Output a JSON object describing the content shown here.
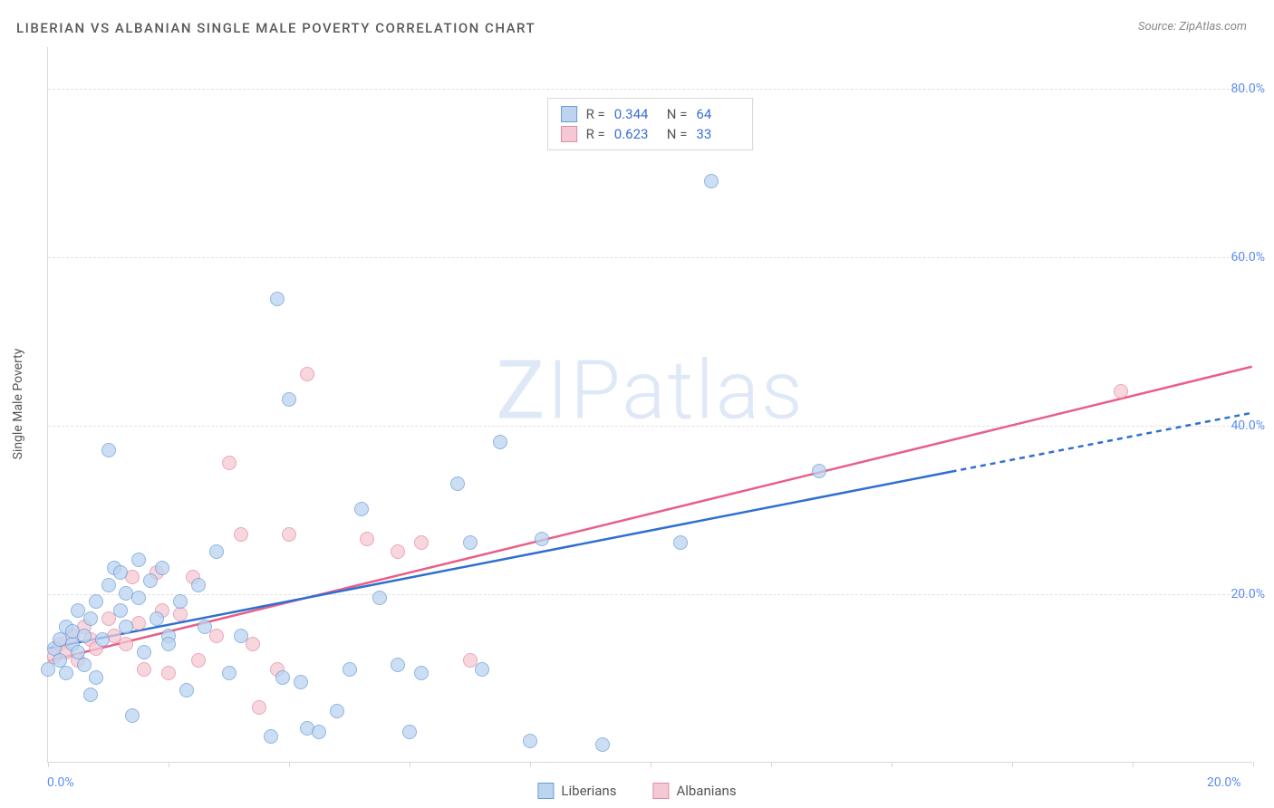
{
  "title": "LIBERIAN VS ALBANIAN SINGLE MALE POVERTY CORRELATION CHART",
  "source": "Source: ZipAtlas.com",
  "watermark": {
    "z": "Z",
    "ip": "IP",
    "atlas": "atlas"
  },
  "yaxis_label": "Single Male Poverty",
  "chart": {
    "type": "scatter",
    "background_color": "#ffffff",
    "grid_color": "#e0e0e0",
    "axis_color": "#d8d8d8",
    "tick_label_color": "#5b8def",
    "tick_fontsize": 14,
    "xlim": [
      0,
      20
    ],
    "ylim": [
      0,
      85
    ],
    "yticks": [
      20,
      40,
      60,
      80
    ],
    "ytick_labels": [
      "20.0%",
      "40.0%",
      "60.0%",
      "80.0%"
    ],
    "xticks": [
      0,
      2,
      4,
      6,
      8,
      10,
      12,
      14,
      16,
      18,
      20
    ],
    "xtick_labels_shown": {
      "0": "0.0%",
      "20": "20.0%"
    },
    "marker_radius": 8,
    "marker_opacity": 0.75
  },
  "series": {
    "liberians": {
      "label": "Liberians",
      "fill": "#bcd4f0",
      "stroke": "#6a9ed8",
      "line_color": "#2f6fd0",
      "line_width": 2.5,
      "R": "0.344",
      "N": "64",
      "trend": {
        "x1": 0.0,
        "y1": 13.5,
        "x2": 15.0,
        "y2": 34.5,
        "dash_from_x": 15.0,
        "dash_to_x": 20.0,
        "dash_to_y": 41.5
      },
      "points": [
        [
          0.0,
          11.0
        ],
        [
          0.1,
          13.5
        ],
        [
          0.2,
          14.5
        ],
        [
          0.2,
          12.0
        ],
        [
          0.3,
          16.0
        ],
        [
          0.3,
          10.5
        ],
        [
          0.4,
          14.0
        ],
        [
          0.4,
          15.5
        ],
        [
          0.5,
          13.0
        ],
        [
          0.5,
          18.0
        ],
        [
          0.6,
          11.5
        ],
        [
          0.6,
          15.0
        ],
        [
          0.7,
          17.0
        ],
        [
          0.7,
          8.0
        ],
        [
          0.8,
          19.0
        ],
        [
          0.8,
          10.0
        ],
        [
          0.9,
          14.5
        ],
        [
          1.0,
          37.0
        ],
        [
          1.0,
          21.0
        ],
        [
          1.1,
          23.0
        ],
        [
          1.2,
          18.0
        ],
        [
          1.2,
          22.5
        ],
        [
          1.3,
          16.0
        ],
        [
          1.3,
          20.0
        ],
        [
          1.4,
          5.5
        ],
        [
          1.5,
          24.0
        ],
        [
          1.5,
          19.5
        ],
        [
          1.6,
          13.0
        ],
        [
          1.7,
          21.5
        ],
        [
          1.8,
          17.0
        ],
        [
          1.9,
          23.0
        ],
        [
          2.0,
          15.0
        ],
        [
          2.0,
          14.0
        ],
        [
          2.2,
          19.0
        ],
        [
          2.3,
          8.5
        ],
        [
          2.5,
          21.0
        ],
        [
          2.6,
          16.0
        ],
        [
          2.8,
          25.0
        ],
        [
          3.0,
          10.5
        ],
        [
          3.2,
          15.0
        ],
        [
          3.7,
          3.0
        ],
        [
          3.8,
          55.0
        ],
        [
          3.9,
          10.0
        ],
        [
          4.0,
          43.0
        ],
        [
          4.2,
          9.5
        ],
        [
          4.3,
          4.0
        ],
        [
          4.5,
          3.5
        ],
        [
          4.8,
          6.0
        ],
        [
          5.0,
          11.0
        ],
        [
          5.2,
          30.0
        ],
        [
          5.5,
          19.5
        ],
        [
          5.8,
          11.5
        ],
        [
          6.0,
          3.5
        ],
        [
          6.2,
          10.5
        ],
        [
          6.8,
          33.0
        ],
        [
          7.0,
          26.0
        ],
        [
          7.2,
          11.0
        ],
        [
          7.5,
          38.0
        ],
        [
          8.0,
          2.5
        ],
        [
          8.2,
          26.5
        ],
        [
          9.2,
          2.0
        ],
        [
          10.5,
          26.0
        ],
        [
          11.0,
          69.0
        ],
        [
          12.8,
          34.5
        ]
      ]
    },
    "albanians": {
      "label": "Albanians",
      "fill": "#f5c9d4",
      "stroke": "#e48aa4",
      "line_color": "#e85f88",
      "line_width": 2.5,
      "R": "0.623",
      "N": "33",
      "trend": {
        "x1": 0.0,
        "y1": 12.0,
        "x2": 20.0,
        "y2": 47.0
      },
      "points": [
        [
          0.1,
          12.5
        ],
        [
          0.2,
          14.0
        ],
        [
          0.3,
          13.0
        ],
        [
          0.4,
          15.0
        ],
        [
          0.5,
          12.0
        ],
        [
          0.6,
          16.0
        ],
        [
          0.7,
          14.5
        ],
        [
          0.8,
          13.5
        ],
        [
          1.0,
          17.0
        ],
        [
          1.1,
          15.0
        ],
        [
          1.3,
          14.0
        ],
        [
          1.4,
          22.0
        ],
        [
          1.5,
          16.5
        ],
        [
          1.6,
          11.0
        ],
        [
          1.8,
          22.5
        ],
        [
          1.9,
          18.0
        ],
        [
          2.0,
          10.5
        ],
        [
          2.2,
          17.5
        ],
        [
          2.4,
          22.0
        ],
        [
          2.5,
          12.0
        ],
        [
          2.8,
          15.0
        ],
        [
          3.0,
          35.5
        ],
        [
          3.2,
          27.0
        ],
        [
          3.4,
          14.0
        ],
        [
          3.5,
          6.5
        ],
        [
          3.8,
          11.0
        ],
        [
          4.0,
          27.0
        ],
        [
          4.3,
          46.0
        ],
        [
          5.3,
          26.5
        ],
        [
          5.8,
          25.0
        ],
        [
          6.2,
          26.0
        ],
        [
          7.0,
          12.0
        ],
        [
          17.8,
          44.0
        ]
      ]
    }
  },
  "stats_legend": {
    "r_label": "R =",
    "n_label": "N ="
  },
  "bottom_legend": {
    "liberians": "Liberians",
    "albanians": "Albanians"
  }
}
